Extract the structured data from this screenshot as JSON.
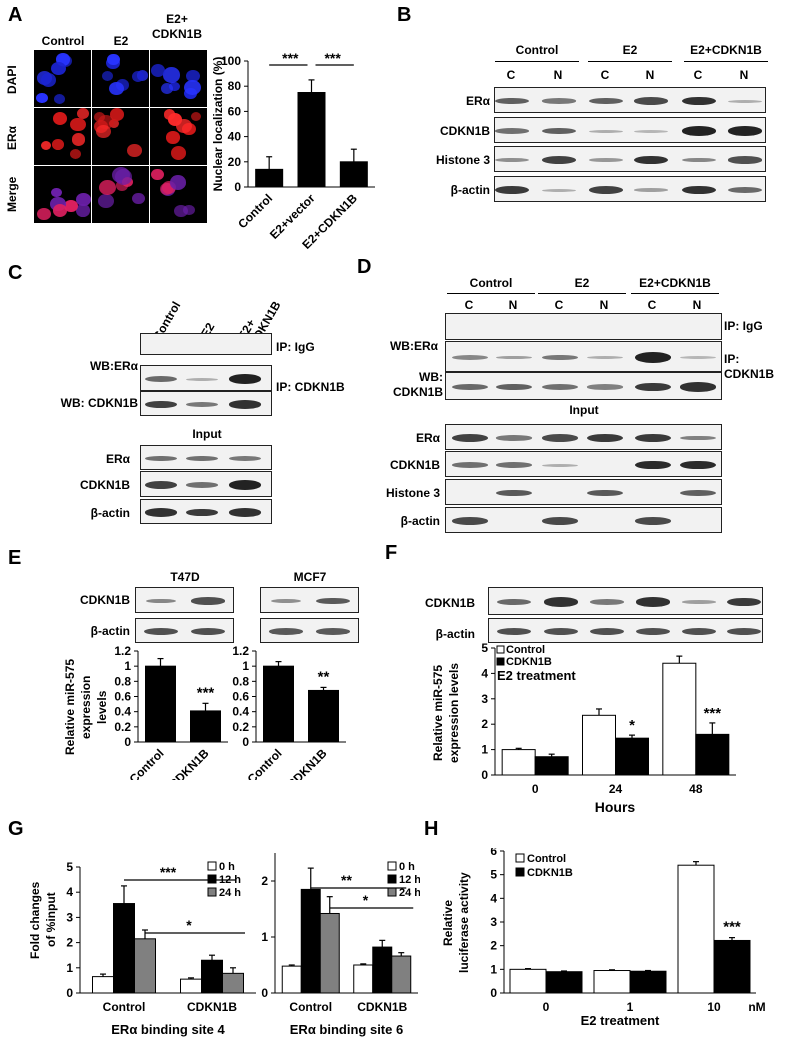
{
  "panels": {
    "A": {
      "label": "A",
      "columns": [
        "Control",
        "E2",
        "E2+\nCDKN1B"
      ],
      "rows": [
        "DAPI",
        "ERα",
        "Merge"
      ]
    },
    "B": {
      "label": "B",
      "groups": [
        "Control",
        "E2",
        "E2+CDKN1B"
      ],
      "lanes": [
        "C",
        "N",
        "C",
        "N",
        "C",
        "N"
      ],
      "rows": [
        "ERα",
        "CDKN1B",
        "Histone 3",
        "β-actin"
      ]
    },
    "C": {
      "label": "C",
      "columns": [
        "Control",
        "E2",
        "E2+\nCDKN1B"
      ],
      "wb_era": "WB:ERα",
      "wb_cdkn1b": "WB: CDKN1B",
      "ip_igg": "IP: IgG",
      "ip_cdkn1b": "IP: CDKN1B",
      "input": "Input",
      "input_rows": [
        "ERα",
        "CDKN1B",
        "β-actin"
      ]
    },
    "D": {
      "label": "D",
      "groups": [
        "Control",
        "E2",
        "E2+CDKN1B"
      ],
      "lanes": [
        "C",
        "N",
        "C",
        "N",
        "C",
        "N"
      ],
      "wb_era": "WB:ERα",
      "wb_cdkn1b": "WB:\nCDKN1B",
      "ip_igg": "IP: IgG",
      "ip_cdkn1b": "IP:\nCDKN1B",
      "input": "Input",
      "input_rows": [
        "ERα",
        "CDKN1B",
        "Histone 3",
        "β-actin"
      ]
    },
    "E": {
      "label": "E",
      "blot_rows": [
        "CDKN1B",
        "β-actin"
      ],
      "ylabel": "Relative miR-575\nexpression levels"
    },
    "F": {
      "label": "F",
      "blot_rows": [
        "CDKN1B",
        "β-actin"
      ],
      "ylabel": "Relative miR-575\nexpression levels",
      "annotation": "E2 treatment"
    },
    "G": {
      "label": "G",
      "ylabel": "Fold changes\nof %input"
    },
    "H": {
      "label": "H",
      "ylabel": "Relative\nluciferase activity"
    }
  },
  "chart_data": [
    {
      "id": "A",
      "type": "bar",
      "categories": [
        "Control",
        "E2+vector",
        "E2+CDKN1B"
      ],
      "values": [
        14,
        75,
        20
      ],
      "errors": [
        10,
        10,
        10
      ],
      "ylabel": "Nuclear localization (%)",
      "ylim": [
        0,
        100
      ],
      "yticks": [
        0,
        20,
        40,
        60,
        80,
        100
      ],
      "significance": [
        "***",
        "***"
      ]
    },
    {
      "id": "E1",
      "type": "bar",
      "title": "T47D",
      "categories": [
        "Control",
        "CDKN1B"
      ],
      "values": [
        1.0,
        0.41
      ],
      "errors": [
        0.1,
        0.1
      ],
      "ylim": [
        0,
        1.2
      ],
      "yticks": [
        "0",
        "0.2",
        "0.4",
        "0.6",
        "0.8",
        "1",
        "1.2"
      ],
      "significance": "***"
    },
    {
      "id": "E2",
      "type": "bar",
      "title": "MCF7",
      "categories": [
        "Control",
        "CDKN1B"
      ],
      "values": [
        1.0,
        0.68
      ],
      "errors": [
        0.06,
        0.04
      ],
      "ylim": [
        0,
        1.2
      ],
      "yticks": [
        "0",
        "0.2",
        "0.4",
        "0.6",
        "0.8",
        "1",
        "1.2"
      ],
      "significance": "**"
    },
    {
      "id": "F",
      "type": "bar",
      "categories": [
        "0",
        "24",
        "48"
      ],
      "xlabel": "Hours",
      "series": [
        {
          "name": "Control",
          "color": "#ffffff",
          "values": [
            1.0,
            2.35,
            4.4
          ],
          "errors": [
            0.05,
            0.25,
            0.28
          ]
        },
        {
          "name": "CDKN1B",
          "color": "#000000",
          "values": [
            0.72,
            1.45,
            1.6
          ],
          "errors": [
            0.1,
            0.12,
            0.45
          ]
        }
      ],
      "ylim": [
        0,
        5
      ],
      "yticks": [
        0,
        1,
        2,
        3,
        4,
        5
      ],
      "significance": [
        "",
        "*",
        "***"
      ]
    },
    {
      "id": "G1",
      "type": "bar",
      "categories": [
        "Control",
        "CDKN1B"
      ],
      "xlabel": "ERα binding site 4",
      "series": [
        {
          "name": "0 h",
          "color": "#ffffff",
          "values": [
            0.65,
            0.55
          ],
          "errors": [
            0.1,
            0.05
          ]
        },
        {
          "name": "12 h",
          "color": "#000000",
          "values": [
            3.55,
            1.3
          ],
          "errors": [
            0.7,
            0.2
          ]
        },
        {
          "name": "24 h",
          "color": "#808080",
          "values": [
            2.15,
            0.78
          ],
          "errors": [
            0.35,
            0.22
          ]
        }
      ],
      "ylim": [
        0,
        5
      ],
      "yticks": [
        0,
        1,
        2,
        3,
        4,
        5
      ],
      "significance": [
        "***",
        "*"
      ]
    },
    {
      "id": "G2",
      "type": "bar",
      "categories": [
        "Control",
        "CDKN1B"
      ],
      "xlabel": "ERα binding site 6",
      "series": [
        {
          "name": "0 h",
          "color": "#ffffff",
          "values": [
            0.48,
            0.5
          ],
          "errors": [
            0.02,
            0.02
          ]
        },
        {
          "name": "12 h",
          "color": "#000000",
          "values": [
            1.85,
            0.82
          ],
          "errors": [
            0.38,
            0.12
          ]
        },
        {
          "name": "24 h",
          "color": "#808080",
          "values": [
            1.42,
            0.66
          ],
          "errors": [
            0.3,
            0.06
          ]
        }
      ],
      "ylim": [
        0,
        2.5
      ],
      "yticks": [
        0,
        1,
        2
      ],
      "significance": [
        "**",
        "*"
      ]
    },
    {
      "id": "H",
      "type": "bar",
      "categories": [
        "0",
        "1",
        "10"
      ],
      "xlabel": "E2 treatment",
      "unit": "nM",
      "series": [
        {
          "name": "Control",
          "color": "#ffffff",
          "values": [
            1.0,
            0.95,
            5.4
          ],
          "errors": [
            0.03,
            0.03,
            0.15
          ]
        },
        {
          "name": "CDKN1B",
          "color": "#000000",
          "values": [
            0.9,
            0.92,
            2.22
          ],
          "errors": [
            0.03,
            0.03,
            0.12
          ]
        }
      ],
      "ylim": [
        0,
        6
      ],
      "yticks": [
        0,
        1,
        2,
        3,
        4,
        5,
        6
      ],
      "significance": [
        "",
        "",
        "***"
      ]
    }
  ]
}
